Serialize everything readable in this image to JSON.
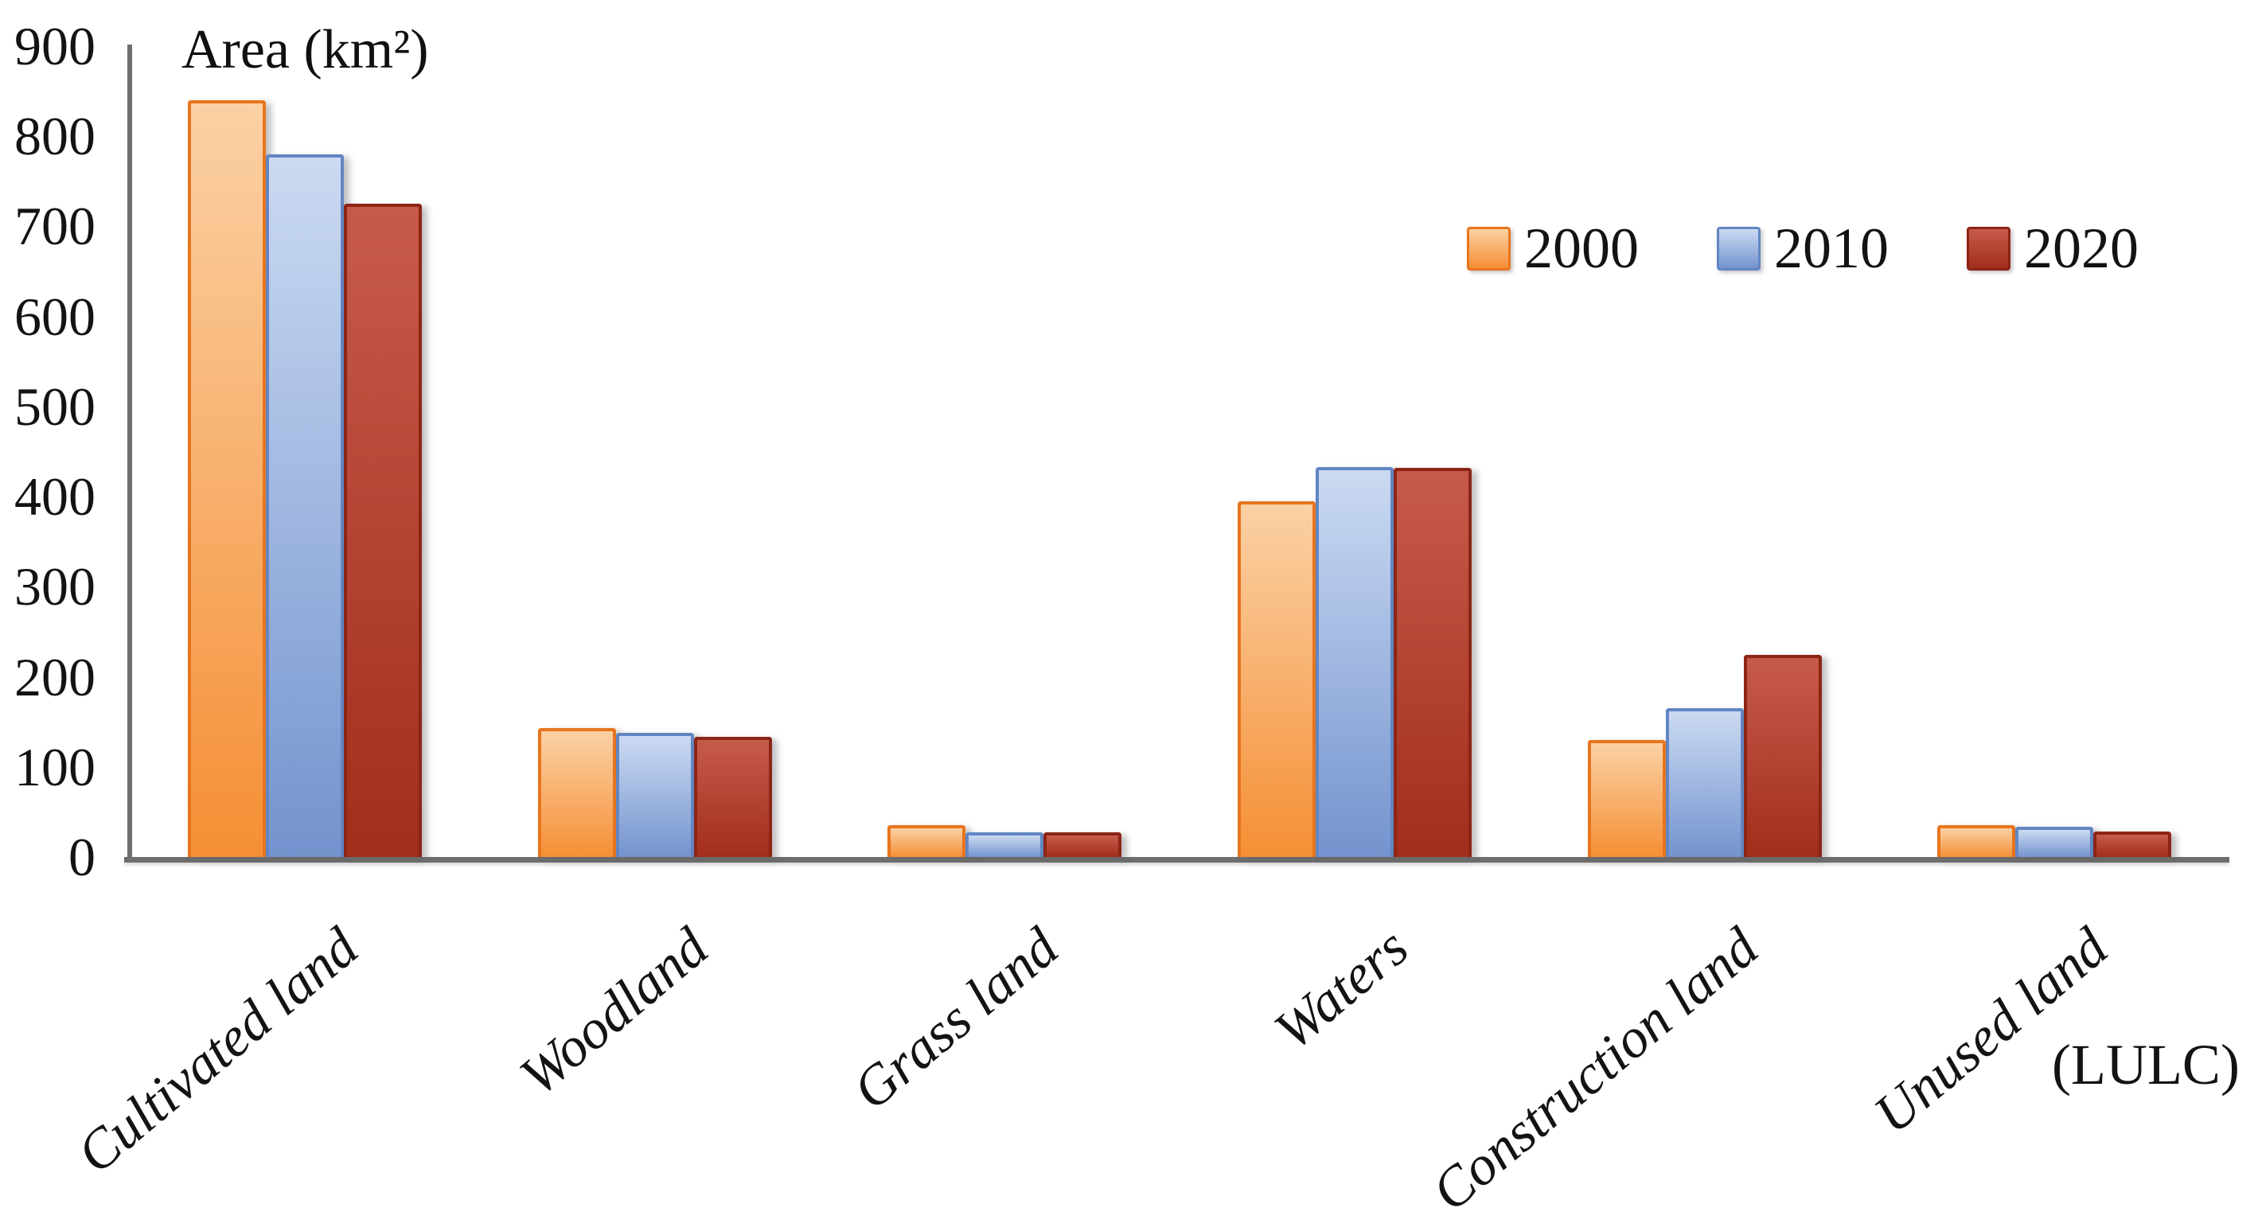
{
  "chart_data": {
    "type": "bar",
    "title": "Area (km²)",
    "ylabel": "Area (km²)",
    "xlabel": "(LULC)",
    "ylim": [
      0,
      900
    ],
    "ytick_step": 100,
    "yticks": [
      "900",
      "800",
      "700",
      "600",
      "500",
      "400",
      "300",
      "200",
      "100",
      "0"
    ],
    "grid": false,
    "legend_position": "top-right",
    "categories": [
      "Cultivated land",
      "Woodland",
      "Grass land",
      "Waters",
      "Construction land",
      "Unused land"
    ],
    "series": [
      {
        "name": "2000",
        "values": [
          840,
          143,
          35,
          395,
          130,
          35
        ],
        "color_top": "#FBD1A5",
        "color_bottom": "#F58F35",
        "color_border": "#E8751D"
      },
      {
        "name": "2010",
        "values": [
          780,
          138,
          27,
          433,
          165,
          34
        ],
        "color_top": "#CBDAF2",
        "color_bottom": "#7493CE",
        "color_border": "#6186C3"
      },
      {
        "name": "2020",
        "values": [
          725,
          133,
          27,
          432,
          224,
          28
        ],
        "color_top": "#C75B4B",
        "color_bottom": "#A22D1A",
        "color_border": "#8C2516"
      }
    ],
    "axis_color": "#6E6E6E",
    "text_color": "#141414"
  }
}
